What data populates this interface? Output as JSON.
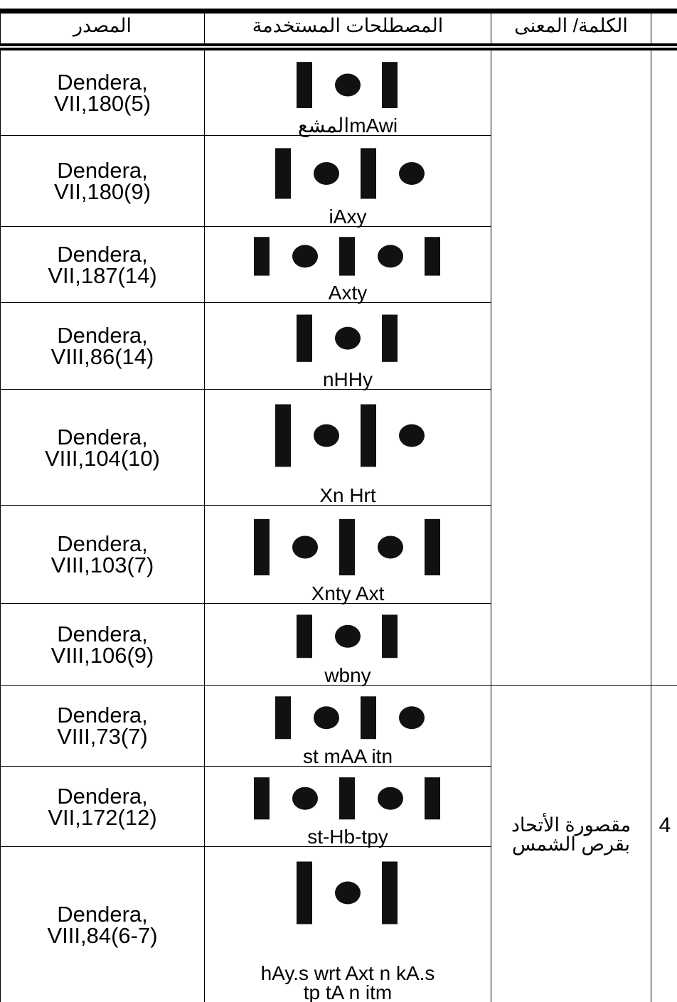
{
  "table": {
    "header": [
      "المصدر",
      "المصطلحات المستخدمة",
      "الكلمة/ المعنى"
    ],
    "rows": [
      {
        "source": "Dendera,\nVII,180(5)",
        "term": "mAwiالمشع"
      },
      {
        "source": "Dendera,\nVII,180(9)",
        "term": "iAxy"
      },
      {
        "source": "Dendera,\nVII,187(14)",
        "term": "Axty"
      },
      {
        "source": "Dendera,\nVIII,86(14)",
        "term": "nHHy"
      },
      {
        "source": "Dendera,\nVIII,104(10)",
        "term": "Xn Hrt"
      },
      {
        "source": "Dendera,\nVIII,103(7)",
        "term": "Xnty Axt"
      },
      {
        "source": "Dendera,\nVIII,106(9)",
        "term": "wbny"
      },
      {
        "source": "Dendera,\nVIII,73(7)",
        "term": "st mAA itn"
      },
      {
        "source": "Dendera,\nVII,172(12)",
        "term": "st-Hb-tpy"
      },
      {
        "source": "Dendera,\nVIII,84(6-7)",
        "term": "hAy.s wrt Axt n kA.s\ntp tA n itm"
      }
    ],
    "entry": {
      "meaning": "مقصورة الأتحاد بقرص الشمس",
      "number": "4"
    }
  }
}
